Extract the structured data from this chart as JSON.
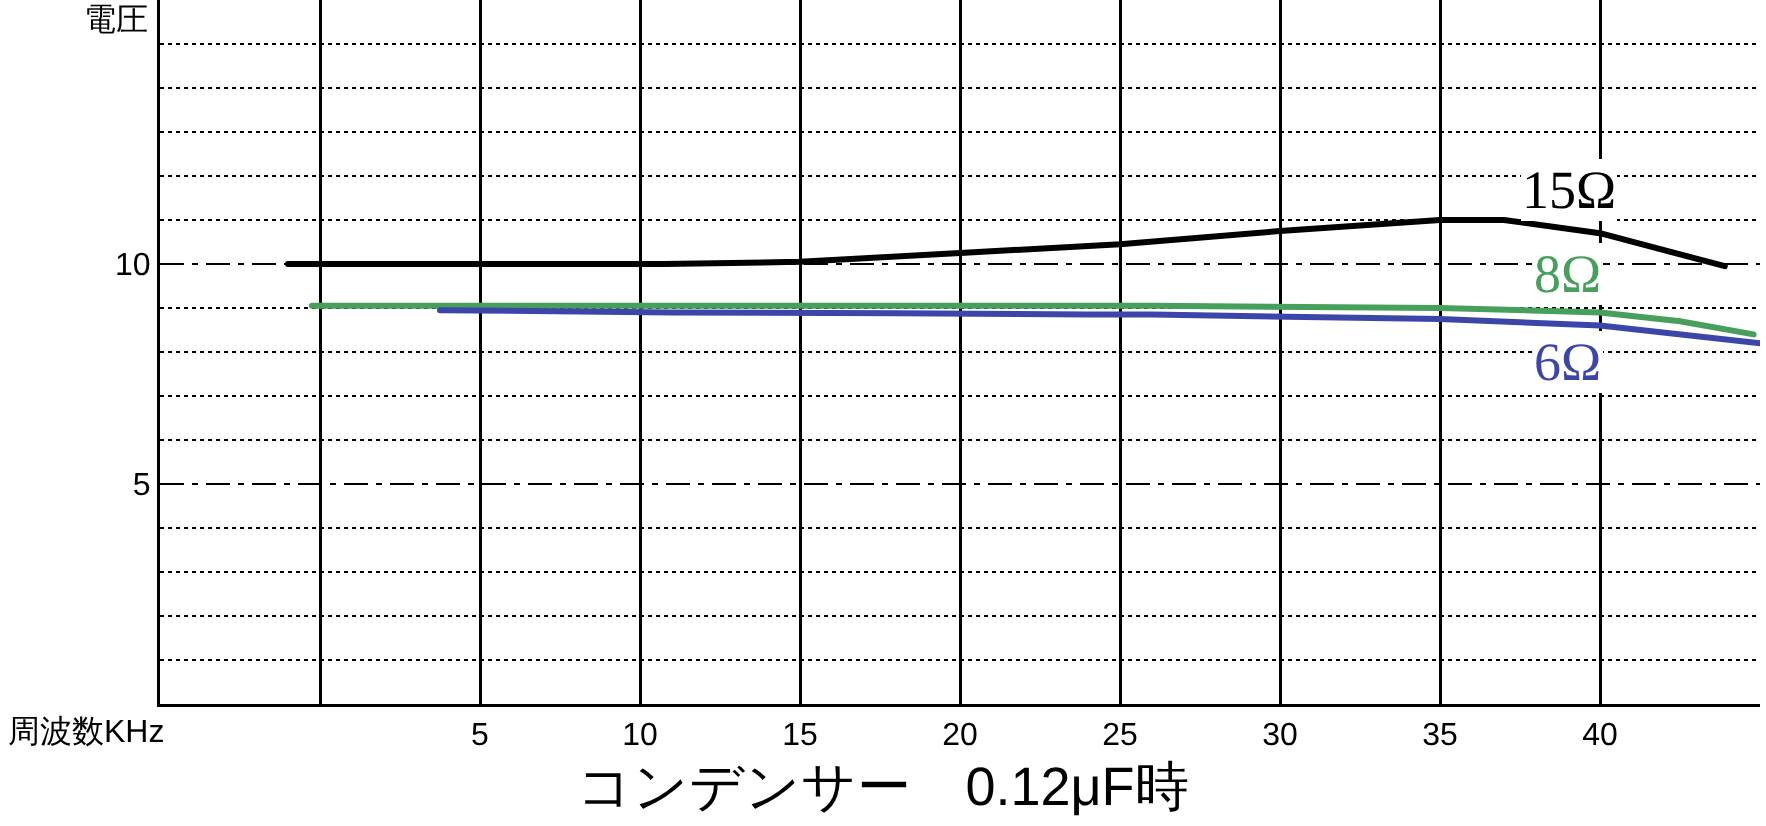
{
  "chart_data": {
    "type": "line",
    "title": "コンデンサー　0.12μF時",
    "xlabel": "周波数KHz",
    "ylabel": "電圧",
    "xlim": [
      -5,
      45
    ],
    "ylim": [
      0,
      16
    ],
    "xticks": [
      {
        "value": 0,
        "label": null
      },
      5,
      10,
      15,
      20,
      25,
      30,
      35,
      40,
      {
        "value": 45,
        "label": null
      }
    ],
    "yticks": [
      {
        "value": 1,
        "label": null
      },
      {
        "value": 2,
        "label": null
      },
      {
        "value": 3,
        "label": null
      },
      {
        "value": 4,
        "label": null
      },
      5,
      {
        "value": 6,
        "label": null
      },
      {
        "value": 7,
        "label": null
      },
      {
        "value": 8,
        "label": null
      },
      {
        "value": 9,
        "label": null
      },
      10,
      {
        "value": 11,
        "label": null
      },
      {
        "value": 12,
        "label": null
      },
      {
        "value": 13,
        "label": null
      },
      {
        "value": 14,
        "label": null
      },
      {
        "value": 15,
        "label": null
      }
    ],
    "grid": true,
    "legend": false,
    "marker": "none",
    "line_style": "solid",
    "series": [
      {
        "name": "15Ω",
        "color": "#000000",
        "x": [
          -1,
          10.75,
          15,
          20,
          25,
          30,
          35,
          37,
          40,
          43.9
        ],
        "values": [
          10.0,
          10.0,
          10.05,
          10.25,
          10.45,
          10.75,
          11.0,
          11.0,
          10.7,
          9.95
        ]
      },
      {
        "name": "8Ω",
        "color": "#46a05c",
        "x": [
          -0.25,
          26,
          35,
          40,
          42.5,
          44.8
        ],
        "values": [
          9.05,
          9.05,
          9.0,
          8.9,
          8.7,
          8.4
        ]
      },
      {
        "name": "6Ω",
        "color": "#3c46a8",
        "x": [
          3.75,
          11,
          18,
          24,
          26,
          35,
          40,
          45
        ],
        "values": [
          8.95,
          8.9,
          8.88,
          8.85,
          8.85,
          8.75,
          8.6,
          8.2
        ]
      }
    ]
  }
}
